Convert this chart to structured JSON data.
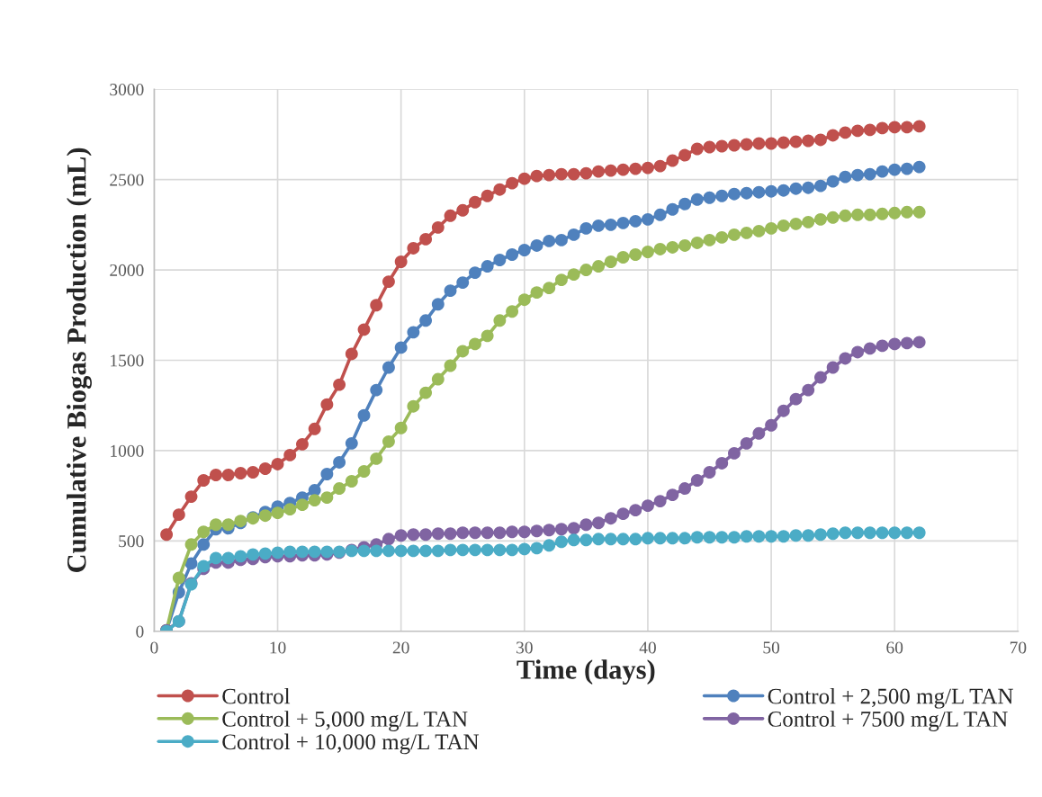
{
  "chart_data": {
    "type": "line",
    "xlabel": "Time (days)",
    "ylabel": "Cumulative Biogas Production (mL)",
    "x": [
      1,
      2,
      3,
      4,
      5,
      6,
      7,
      8,
      9,
      10,
      11,
      12,
      13,
      14,
      15,
      16,
      17,
      18,
      19,
      20,
      21,
      22,
      23,
      24,
      25,
      26,
      27,
      28,
      29,
      30,
      31,
      32,
      33,
      34,
      35,
      36,
      37,
      38,
      39,
      40,
      41,
      42,
      43,
      44,
      45,
      46,
      47,
      48,
      49,
      50,
      51,
      52,
      53,
      54,
      55,
      56,
      57,
      58,
      59,
      60,
      61,
      62
    ],
    "series": [
      {
        "name": "Control",
        "color": "#c0504d",
        "values": [
          535,
          645,
          745,
          835,
          865,
          865,
          875,
          880,
          900,
          925,
          975,
          1035,
          1120,
          1255,
          1365,
          1535,
          1670,
          1805,
          1935,
          2045,
          2120,
          2170,
          2235,
          2300,
          2330,
          2375,
          2410,
          2445,
          2480,
          2505,
          2520,
          2525,
          2530,
          2530,
          2535,
          2545,
          2550,
          2555,
          2560,
          2565,
          2575,
          2605,
          2635,
          2670,
          2680,
          2685,
          2690,
          2695,
          2700,
          2700,
          2705,
          2710,
          2715,
          2720,
          2745,
          2760,
          2770,
          2775,
          2785,
          2790,
          2790,
          2795
        ]
      },
      {
        "name": "Control + 2,500 mg/L TAN",
        "color": "#4f81bd",
        "values": [
          5,
          215,
          375,
          480,
          565,
          570,
          600,
          630,
          660,
          690,
          710,
          740,
          780,
          870,
          935,
          1040,
          1195,
          1335,
          1460,
          1570,
          1655,
          1720,
          1810,
          1885,
          1930,
          1985,
          2020,
          2055,
          2085,
          2110,
          2135,
          2160,
          2165,
          2195,
          2230,
          2245,
          2250,
          2260,
          2270,
          2280,
          2305,
          2335,
          2365,
          2390,
          2400,
          2410,
          2420,
          2425,
          2430,
          2435,
          2440,
          2450,
          2455,
          2465,
          2490,
          2515,
          2525,
          2530,
          2545,
          2555,
          2560,
          2570
        ]
      },
      {
        "name": "Control + 5,000 mg/L TAN",
        "color": "#9bbb59",
        "values": [
          5,
          295,
          480,
          550,
          590,
          590,
          610,
          625,
          640,
          655,
          675,
          700,
          725,
          740,
          790,
          830,
          885,
          955,
          1050,
          1125,
          1245,
          1320,
          1395,
          1470,
          1550,
          1590,
          1635,
          1720,
          1770,
          1835,
          1875,
          1900,
          1945,
          1975,
          2000,
          2020,
          2045,
          2070,
          2085,
          2100,
          2115,
          2125,
          2135,
          2150,
          2165,
          2180,
          2195,
          2205,
          2215,
          2230,
          2245,
          2255,
          2265,
          2280,
          2290,
          2300,
          2305,
          2305,
          2310,
          2315,
          2320,
          2320
        ]
      },
      {
        "name": "Control + 7500 mg/L TAN",
        "color": "#8064a2",
        "values": [
          5,
          55,
          265,
          345,
          380,
          380,
          395,
          400,
          410,
          415,
          415,
          420,
          420,
          425,
          435,
          450,
          465,
          480,
          510,
          530,
          535,
          535,
          540,
          540,
          545,
          545,
          545,
          545,
          550,
          550,
          555,
          560,
          565,
          570,
          590,
          600,
          625,
          650,
          670,
          695,
          720,
          755,
          790,
          835,
          880,
          930,
          985,
          1040,
          1095,
          1140,
          1220,
          1285,
          1335,
          1405,
          1460,
          1510,
          1545,
          1565,
          1580,
          1590,
          1595,
          1600
        ]
      },
      {
        "name": "Control + 10,000 mg/L TAN",
        "color": "#4bacc6",
        "values": [
          0,
          55,
          260,
          360,
          405,
          405,
          415,
          425,
          430,
          435,
          440,
          440,
          440,
          440,
          440,
          445,
          445,
          445,
          445,
          445,
          445,
          445,
          445,
          450,
          450,
          450,
          450,
          450,
          450,
          455,
          460,
          475,
          495,
          505,
          505,
          510,
          510,
          510,
          510,
          515,
          515,
          515,
          515,
          520,
          520,
          520,
          520,
          525,
          525,
          525,
          525,
          530,
          530,
          535,
          540,
          545,
          545,
          545,
          545,
          545,
          545,
          545
        ]
      }
    ],
    "xlim": [
      0,
      70
    ],
    "xticks": [
      0,
      10,
      20,
      30,
      40,
      50,
      60,
      70
    ],
    "ylim": [
      0,
      3000
    ],
    "yticks": [
      0,
      500,
      1000,
      1500,
      2000,
      2500,
      3000
    ],
    "grid": true,
    "legend": "bottom",
    "marker": "circle",
    "line_style": "solid"
  }
}
